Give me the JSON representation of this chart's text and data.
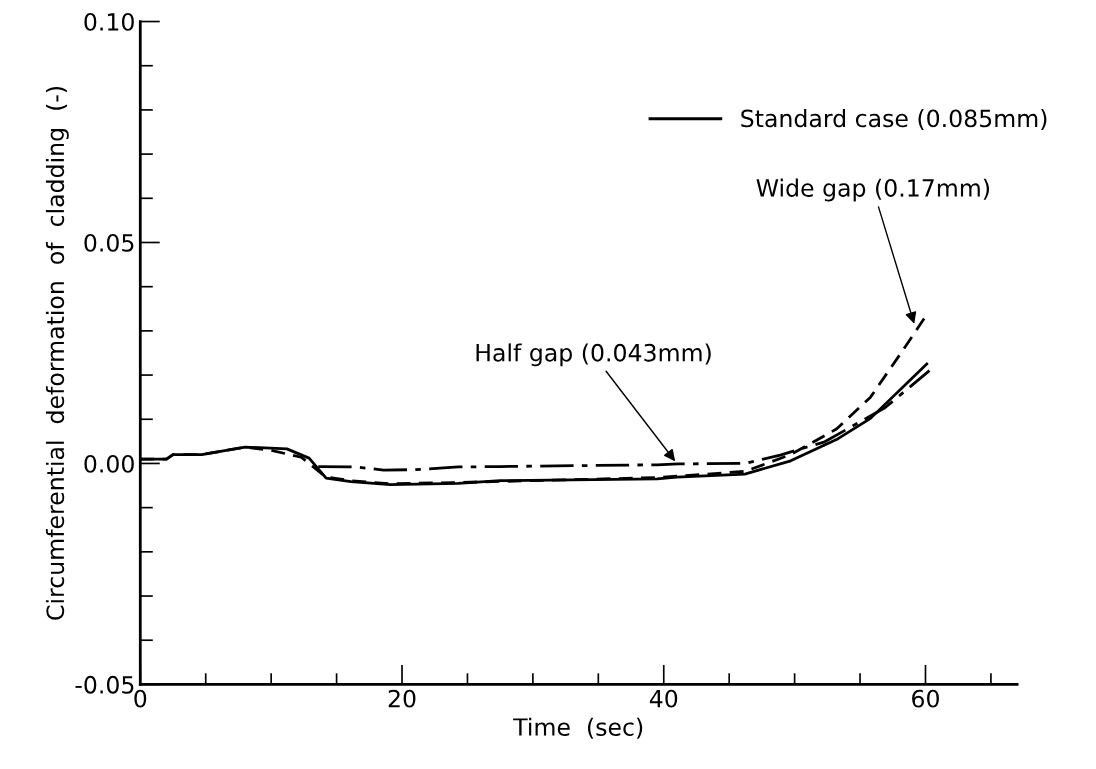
{
  "chart_data": {
    "type": "line",
    "xlabel": "Time  (sec)",
    "ylabel": "Circumferential  deformation  of  cladding  (-)",
    "xlim": [
      0,
      67
    ],
    "ylim": [
      -0.05,
      0.1
    ],
    "xticks": [
      0,
      {
        "value": 5,
        "label": null
      },
      {
        "value": 10,
        "label": null
      },
      {
        "value": 15,
        "label": null
      },
      20,
      {
        "value": 25,
        "label": null
      },
      {
        "value": 30,
        "label": null
      },
      {
        "value": 35,
        "label": null
      },
      40,
      {
        "value": 45,
        "label": null
      },
      {
        "value": 50,
        "label": null
      },
      {
        "value": 55,
        "label": null
      },
      60,
      {
        "value": 65,
        "label": null
      }
    ],
    "yticks": [
      {
        "value": -0.05,
        "label": "-0.05"
      },
      {
        "value": -0.04,
        "label": null
      },
      {
        "value": -0.03,
        "label": null
      },
      {
        "value": -0.02,
        "label": null
      },
      {
        "value": -0.01,
        "label": null
      },
      {
        "value": 0,
        "label": "0.00"
      },
      {
        "value": 0.01,
        "label": null
      },
      {
        "value": 0.02,
        "label": null
      },
      {
        "value": 0.03,
        "label": null
      },
      {
        "value": 0.04,
        "label": null
      },
      {
        "value": 0.05,
        "label": "0.05"
      },
      {
        "value": 0.06,
        "label": null
      },
      {
        "value": 0.07,
        "label": null
      },
      {
        "value": 0.08,
        "label": null
      },
      {
        "value": 0.09,
        "label": null
      },
      {
        "value": 0.1,
        "label": "0.10"
      }
    ],
    "grid": false,
    "legend": "top right",
    "marker": "none",
    "series": [
      {
        "name": "Standard case (0.085mm)",
        "color": "#000000",
        "line_style": "solid",
        "x": [
          0,
          2,
          2.5,
          4.7,
          8,
          11.2,
          12.9,
          14.2,
          16.1,
          19.1,
          24.3,
          27.5,
          39.5,
          41,
          46.2,
          49.7,
          53.2,
          55.8,
          60.1
        ],
        "values": [
          0.001,
          0.001,
          0.002,
          0.002,
          0.0037,
          0.0033,
          0.0012,
          -0.0033,
          -0.0041,
          -0.0048,
          -0.0045,
          -0.0039,
          -0.0035,
          -0.0031,
          -0.0024,
          0.0006,
          0.0054,
          0.0102,
          0.0225
        ]
      },
      {
        "color": "#000000",
        "line_style": "dashed",
        "x": [
          0,
          2,
          2.5,
          4.7,
          8,
          10.1,
          12.3,
          14.2,
          16.1,
          19.1,
          24.3,
          39.5,
          46.2,
          49.7,
          53.2,
          55.8,
          58.2,
          59.9
        ],
        "values": [
          0.001,
          0.001,
          0.002,
          0.002,
          0.0037,
          0.0029,
          0.0014,
          -0.0031,
          -0.0039,
          -0.0046,
          -0.0043,
          -0.0032,
          -0.0018,
          0.002,
          0.0078,
          0.015,
          0.0253,
          0.0328
        ]
      },
      {
        "color": "#000000",
        "line_style": "dashdot",
        "x": [
          13.6,
          16.5,
          18.6,
          21,
          24.3,
          27.5,
          39.5,
          41.1,
          46.2,
          48.9,
          52.3,
          56.9,
          60.3
        ],
        "values": [
          -0.0007,
          -0.0008,
          -0.0015,
          -0.0014,
          -0.0008,
          -0.0007,
          -0.0003,
          -0.0001,
          0.0,
          0.0019,
          0.0049,
          0.0126,
          0.021
        ]
      }
    ],
    "annotations": [
      {
        "text": "Half gap (0.043mm)",
        "x": 41,
        "y": 0.0
      },
      {
        "text": "Wide gap (0.17mm)",
        "x": 59.2,
        "y": 0.031
      }
    ]
  }
}
